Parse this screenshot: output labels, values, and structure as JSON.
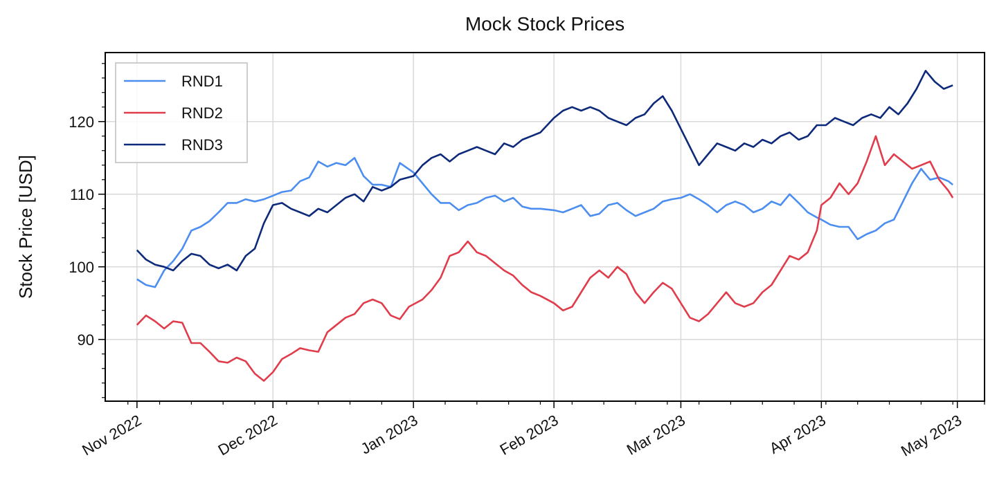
{
  "chart_data": {
    "type": "line",
    "title": "Mock Stock Prices",
    "xlabel": "",
    "ylabel": "Stock Price [USD]",
    "grid": true,
    "legend_position": "top-left",
    "x_range": [
      "2022-10-25",
      "2023-05-07"
    ],
    "ylim": [
      81.5,
      129.5
    ],
    "y_ticks": [
      90,
      100,
      110,
      120
    ],
    "x_ticks": [
      {
        "date": "2022-11-01",
        "label": "Nov 2022"
      },
      {
        "date": "2022-12-01",
        "label": "Dec 2022"
      },
      {
        "date": "2023-01-01",
        "label": "Jan 2023"
      },
      {
        "date": "2023-02-01",
        "label": "Feb 2023"
      },
      {
        "date": "2023-03-01",
        "label": "Mar 2023"
      },
      {
        "date": "2023-04-01",
        "label": "Apr 2023"
      },
      {
        "date": "2023-05-01",
        "label": "May 2023"
      }
    ],
    "series": [
      {
        "name": "RND1",
        "color": "#4b8ef0",
        "points": [
          [
            "2022-11-01",
            98.3
          ],
          [
            "2022-11-03",
            97.5
          ],
          [
            "2022-11-05",
            97.2
          ],
          [
            "2022-11-07",
            99.5
          ],
          [
            "2022-11-09",
            100.8
          ],
          [
            "2022-11-11",
            102.5
          ],
          [
            "2022-11-13",
            105.0
          ],
          [
            "2022-11-15",
            105.5
          ],
          [
            "2022-11-17",
            106.3
          ],
          [
            "2022-11-19",
            107.5
          ],
          [
            "2022-11-21",
            108.8
          ],
          [
            "2022-11-23",
            108.8
          ],
          [
            "2022-11-25",
            109.3
          ],
          [
            "2022-11-27",
            109.0
          ],
          [
            "2022-11-29",
            109.3
          ],
          [
            "2022-12-01",
            109.8
          ],
          [
            "2022-12-03",
            110.3
          ],
          [
            "2022-12-05",
            110.5
          ],
          [
            "2022-12-07",
            111.8
          ],
          [
            "2022-12-09",
            112.3
          ],
          [
            "2022-12-11",
            114.5
          ],
          [
            "2022-12-13",
            113.8
          ],
          [
            "2022-12-15",
            114.3
          ],
          [
            "2022-12-17",
            114.0
          ],
          [
            "2022-12-19",
            115.0
          ],
          [
            "2022-12-21",
            112.5
          ],
          [
            "2022-12-23",
            111.3
          ],
          [
            "2022-12-25",
            111.3
          ],
          [
            "2022-12-27",
            111.0
          ],
          [
            "2022-12-29",
            114.3
          ],
          [
            "2023-01-01",
            113.0
          ],
          [
            "2023-01-03",
            111.5
          ],
          [
            "2023-01-05",
            110.0
          ],
          [
            "2023-01-07",
            108.8
          ],
          [
            "2023-01-09",
            108.8
          ],
          [
            "2023-01-11",
            107.8
          ],
          [
            "2023-01-13",
            108.5
          ],
          [
            "2023-01-15",
            108.8
          ],
          [
            "2023-01-17",
            109.5
          ],
          [
            "2023-01-19",
            109.8
          ],
          [
            "2023-01-21",
            109.0
          ],
          [
            "2023-01-23",
            109.5
          ],
          [
            "2023-01-25",
            108.3
          ],
          [
            "2023-01-27",
            108.0
          ],
          [
            "2023-01-29",
            108.0
          ],
          [
            "2023-02-01",
            107.8
          ],
          [
            "2023-02-03",
            107.5
          ],
          [
            "2023-02-05",
            108.0
          ],
          [
            "2023-02-07",
            108.5
          ],
          [
            "2023-02-09",
            107.0
          ],
          [
            "2023-02-11",
            107.3
          ],
          [
            "2023-02-13",
            108.5
          ],
          [
            "2023-02-15",
            108.8
          ],
          [
            "2023-02-17",
            107.8
          ],
          [
            "2023-02-19",
            107.0
          ],
          [
            "2023-02-21",
            107.5
          ],
          [
            "2023-02-23",
            108.0
          ],
          [
            "2023-02-25",
            109.0
          ],
          [
            "2023-02-27",
            109.3
          ],
          [
            "2023-03-01",
            109.5
          ],
          [
            "2023-03-03",
            110.0
          ],
          [
            "2023-03-05",
            109.3
          ],
          [
            "2023-03-07",
            108.5
          ],
          [
            "2023-03-09",
            107.5
          ],
          [
            "2023-03-11",
            108.5
          ],
          [
            "2023-03-13",
            109.0
          ],
          [
            "2023-03-15",
            108.5
          ],
          [
            "2023-03-17",
            107.5
          ],
          [
            "2023-03-19",
            108.0
          ],
          [
            "2023-03-21",
            109.0
          ],
          [
            "2023-03-23",
            108.5
          ],
          [
            "2023-03-25",
            110.0
          ],
          [
            "2023-03-27",
            108.8
          ],
          [
            "2023-03-29",
            107.5
          ],
          [
            "2023-03-31",
            106.8
          ],
          [
            "2023-04-01",
            106.5
          ],
          [
            "2023-04-03",
            105.8
          ],
          [
            "2023-04-05",
            105.5
          ],
          [
            "2023-04-07",
            105.5
          ],
          [
            "2023-04-09",
            103.8
          ],
          [
            "2023-04-11",
            104.5
          ],
          [
            "2023-04-13",
            105.0
          ],
          [
            "2023-04-15",
            106.0
          ],
          [
            "2023-04-17",
            106.5
          ],
          [
            "2023-04-19",
            109.0
          ],
          [
            "2023-04-21",
            111.5
          ],
          [
            "2023-04-23",
            113.5
          ],
          [
            "2023-04-25",
            112.0
          ],
          [
            "2023-04-27",
            112.3
          ],
          [
            "2023-04-29",
            111.8
          ],
          [
            "2023-04-30",
            111.3
          ]
        ]
      },
      {
        "name": "RND2",
        "color": "#e03c4b",
        "points": [
          [
            "2022-11-01",
            92.0
          ],
          [
            "2022-11-03",
            93.3
          ],
          [
            "2022-11-05",
            92.5
          ],
          [
            "2022-11-07",
            91.5
          ],
          [
            "2022-11-09",
            92.5
          ],
          [
            "2022-11-11",
            92.3
          ],
          [
            "2022-11-13",
            89.5
          ],
          [
            "2022-11-15",
            89.5
          ],
          [
            "2022-11-17",
            88.3
          ],
          [
            "2022-11-19",
            87.0
          ],
          [
            "2022-11-21",
            86.8
          ],
          [
            "2022-11-23",
            87.5
          ],
          [
            "2022-11-25",
            87.0
          ],
          [
            "2022-11-27",
            85.3
          ],
          [
            "2022-11-29",
            84.3
          ],
          [
            "2022-12-01",
            85.5
          ],
          [
            "2022-12-03",
            87.3
          ],
          [
            "2022-12-05",
            88.0
          ],
          [
            "2022-12-07",
            88.8
          ],
          [
            "2022-12-09",
            88.5
          ],
          [
            "2022-12-11",
            88.3
          ],
          [
            "2022-12-13",
            91.0
          ],
          [
            "2022-12-15",
            92.0
          ],
          [
            "2022-12-17",
            93.0
          ],
          [
            "2022-12-19",
            93.5
          ],
          [
            "2022-12-21",
            95.0
          ],
          [
            "2022-12-23",
            95.5
          ],
          [
            "2022-12-25",
            95.0
          ],
          [
            "2022-12-27",
            93.3
          ],
          [
            "2022-12-29",
            92.8
          ],
          [
            "2022-12-31",
            94.5
          ],
          [
            "2023-01-03",
            95.5
          ],
          [
            "2023-01-05",
            96.8
          ],
          [
            "2023-01-07",
            98.5
          ],
          [
            "2023-01-09",
            101.5
          ],
          [
            "2023-01-11",
            102.0
          ],
          [
            "2023-01-13",
            103.5
          ],
          [
            "2023-01-15",
            102.0
          ],
          [
            "2023-01-17",
            101.5
          ],
          [
            "2023-01-19",
            100.5
          ],
          [
            "2023-01-21",
            99.5
          ],
          [
            "2023-01-23",
            98.8
          ],
          [
            "2023-01-25",
            97.5
          ],
          [
            "2023-01-27",
            96.5
          ],
          [
            "2023-01-29",
            96.0
          ],
          [
            "2023-02-01",
            95.0
          ],
          [
            "2023-02-03",
            94.0
          ],
          [
            "2023-02-05",
            94.5
          ],
          [
            "2023-02-07",
            96.5
          ],
          [
            "2023-02-09",
            98.5
          ],
          [
            "2023-02-11",
            99.5
          ],
          [
            "2023-02-13",
            98.5
          ],
          [
            "2023-02-15",
            100.0
          ],
          [
            "2023-02-17",
            99.0
          ],
          [
            "2023-02-19",
            96.5
          ],
          [
            "2023-02-21",
            95.0
          ],
          [
            "2023-02-23",
            96.5
          ],
          [
            "2023-02-25",
            97.8
          ],
          [
            "2023-02-27",
            97.0
          ],
          [
            "2023-03-01",
            95.0
          ],
          [
            "2023-03-03",
            93.0
          ],
          [
            "2023-03-05",
            92.5
          ],
          [
            "2023-03-07",
            93.5
          ],
          [
            "2023-03-09",
            95.0
          ],
          [
            "2023-03-11",
            96.5
          ],
          [
            "2023-03-13",
            95.0
          ],
          [
            "2023-03-15",
            94.5
          ],
          [
            "2023-03-17",
            95.0
          ],
          [
            "2023-03-19",
            96.5
          ],
          [
            "2023-03-21",
            97.5
          ],
          [
            "2023-03-23",
            99.5
          ],
          [
            "2023-03-25",
            101.5
          ],
          [
            "2023-03-27",
            101.0
          ],
          [
            "2023-03-29",
            102.0
          ],
          [
            "2023-03-31",
            105.0
          ],
          [
            "2023-04-01",
            108.5
          ],
          [
            "2023-04-03",
            109.5
          ],
          [
            "2023-04-05",
            111.5
          ],
          [
            "2023-04-07",
            110.0
          ],
          [
            "2023-04-09",
            111.5
          ],
          [
            "2023-04-11",
            114.5
          ],
          [
            "2023-04-13",
            118.0
          ],
          [
            "2023-04-15",
            114.0
          ],
          [
            "2023-04-17",
            115.5
          ],
          [
            "2023-04-19",
            114.5
          ],
          [
            "2023-04-21",
            113.5
          ],
          [
            "2023-04-23",
            114.0
          ],
          [
            "2023-04-25",
            114.5
          ],
          [
            "2023-04-27",
            112.0
          ],
          [
            "2023-04-29",
            110.5
          ],
          [
            "2023-04-30",
            109.5
          ]
        ]
      },
      {
        "name": "RND3",
        "color": "#0d2a7a",
        "points": [
          [
            "2022-11-01",
            102.3
          ],
          [
            "2022-11-03",
            101.0
          ],
          [
            "2022-11-05",
            100.3
          ],
          [
            "2022-11-07",
            100.0
          ],
          [
            "2022-11-09",
            99.5
          ],
          [
            "2022-11-11",
            100.8
          ],
          [
            "2022-11-13",
            101.8
          ],
          [
            "2022-11-15",
            101.5
          ],
          [
            "2022-11-17",
            100.3
          ],
          [
            "2022-11-19",
            99.8
          ],
          [
            "2022-11-21",
            100.3
          ],
          [
            "2022-11-23",
            99.5
          ],
          [
            "2022-11-25",
            101.5
          ],
          [
            "2022-11-27",
            102.5
          ],
          [
            "2022-11-29",
            106.0
          ],
          [
            "2022-12-01",
            108.5
          ],
          [
            "2022-12-03",
            108.8
          ],
          [
            "2022-12-05",
            108.0
          ],
          [
            "2022-12-07",
            107.5
          ],
          [
            "2022-12-09",
            107.0
          ],
          [
            "2022-12-11",
            108.0
          ],
          [
            "2022-12-13",
            107.5
          ],
          [
            "2022-12-15",
            108.5
          ],
          [
            "2022-12-17",
            109.5
          ],
          [
            "2022-12-19",
            110.0
          ],
          [
            "2022-12-21",
            109.0
          ],
          [
            "2022-12-23",
            111.0
          ],
          [
            "2022-12-25",
            110.5
          ],
          [
            "2022-12-27",
            111.0
          ],
          [
            "2022-12-29",
            112.0
          ],
          [
            "2023-01-01",
            112.5
          ],
          [
            "2023-01-03",
            114.0
          ],
          [
            "2023-01-05",
            115.0
          ],
          [
            "2023-01-07",
            115.5
          ],
          [
            "2023-01-09",
            114.5
          ],
          [
            "2023-01-11",
            115.5
          ],
          [
            "2023-01-13",
            116.0
          ],
          [
            "2023-01-15",
            116.5
          ],
          [
            "2023-01-17",
            116.0
          ],
          [
            "2023-01-19",
            115.5
          ],
          [
            "2023-01-21",
            117.0
          ],
          [
            "2023-01-23",
            116.5
          ],
          [
            "2023-01-25",
            117.5
          ],
          [
            "2023-01-27",
            118.0
          ],
          [
            "2023-01-29",
            118.5
          ],
          [
            "2023-02-01",
            120.5
          ],
          [
            "2023-02-03",
            121.5
          ],
          [
            "2023-02-05",
            122.0
          ],
          [
            "2023-02-07",
            121.5
          ],
          [
            "2023-02-09",
            122.0
          ],
          [
            "2023-02-11",
            121.5
          ],
          [
            "2023-02-13",
            120.5
          ],
          [
            "2023-02-15",
            120.0
          ],
          [
            "2023-02-17",
            119.5
          ],
          [
            "2023-02-19",
            120.5
          ],
          [
            "2023-02-21",
            121.0
          ],
          [
            "2023-02-23",
            122.5
          ],
          [
            "2023-02-25",
            123.5
          ],
          [
            "2023-02-27",
            121.5
          ],
          [
            "2023-03-01",
            119.0
          ],
          [
            "2023-03-03",
            116.5
          ],
          [
            "2023-03-05",
            114.0
          ],
          [
            "2023-03-07",
            115.5
          ],
          [
            "2023-03-09",
            117.0
          ],
          [
            "2023-03-11",
            116.5
          ],
          [
            "2023-03-13",
            116.0
          ],
          [
            "2023-03-15",
            117.0
          ],
          [
            "2023-03-17",
            116.5
          ],
          [
            "2023-03-19",
            117.5
          ],
          [
            "2023-03-21",
            117.0
          ],
          [
            "2023-03-23",
            118.0
          ],
          [
            "2023-03-25",
            118.5
          ],
          [
            "2023-03-27",
            117.5
          ],
          [
            "2023-03-29",
            118.0
          ],
          [
            "2023-03-31",
            119.5
          ],
          [
            "2023-04-02",
            119.5
          ],
          [
            "2023-04-04",
            120.5
          ],
          [
            "2023-04-06",
            120.0
          ],
          [
            "2023-04-08",
            119.5
          ],
          [
            "2023-04-10",
            120.5
          ],
          [
            "2023-04-12",
            121.0
          ],
          [
            "2023-04-14",
            120.5
          ],
          [
            "2023-04-16",
            122.0
          ],
          [
            "2023-04-18",
            121.0
          ],
          [
            "2023-04-20",
            122.5
          ],
          [
            "2023-04-22",
            124.5
          ],
          [
            "2023-04-24",
            127.0
          ],
          [
            "2023-04-26",
            125.5
          ],
          [
            "2023-04-28",
            124.5
          ],
          [
            "2023-04-30",
            125.0
          ]
        ]
      }
    ]
  }
}
